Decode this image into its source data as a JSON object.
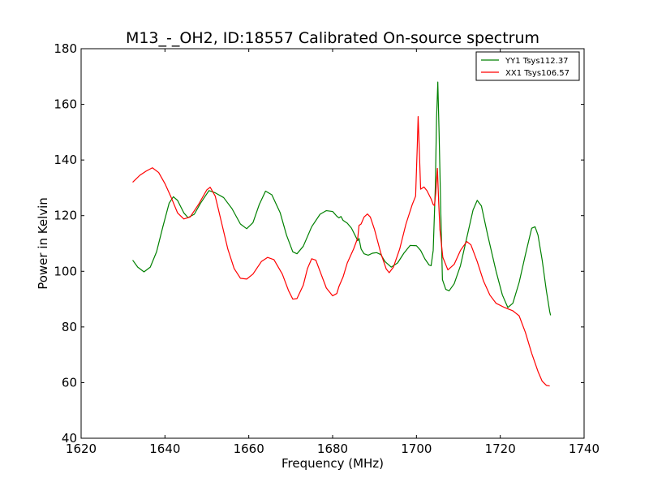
{
  "chart_data": {
    "type": "line",
    "title": "M13_-_OH2, ID:18557 Calibrated On-source spectrum",
    "xlabel": "Frequency (MHz)",
    "ylabel": "Power in Kelvin",
    "xlim": [
      1620,
      1740
    ],
    "ylim": [
      40,
      180
    ],
    "xticks": [
      "1620",
      "1640",
      "1660",
      "1680",
      "1700",
      "1720",
      "1740"
    ],
    "yticks": [
      "40",
      "60",
      "80",
      "100",
      "120",
      "140",
      "160",
      "180"
    ],
    "grid": false,
    "legend_position": "top-right",
    "series": [
      {
        "name": "YY1 Tsys112.37",
        "color": "#008000",
        "points": [
          [
            1632.3,
            104.0
          ],
          [
            1633.5,
            101.5
          ],
          [
            1635,
            99.8
          ],
          [
            1636.5,
            101.5
          ],
          [
            1638,
            107
          ],
          [
            1639.5,
            116
          ],
          [
            1641,
            124.5
          ],
          [
            1642,
            126.8
          ],
          [
            1643,
            125.5
          ],
          [
            1644.5,
            121
          ],
          [
            1645.5,
            119.3
          ],
          [
            1647,
            120.5
          ],
          [
            1648.5,
            124.5
          ],
          [
            1650.5,
            129
          ],
          [
            1652,
            128.2
          ],
          [
            1654,
            126.5
          ],
          [
            1656,
            122.5
          ],
          [
            1658,
            117
          ],
          [
            1659.5,
            115.3
          ],
          [
            1661,
            117.5
          ],
          [
            1662.5,
            124
          ],
          [
            1664,
            128.8
          ],
          [
            1665.5,
            127.5
          ],
          [
            1667.5,
            121
          ],
          [
            1669,
            113
          ],
          [
            1670.5,
            107
          ],
          [
            1671.5,
            106.3
          ],
          [
            1673,
            109
          ],
          [
            1675,
            116
          ],
          [
            1677,
            120.5
          ],
          [
            1678.5,
            121.8
          ],
          [
            1680,
            121.5
          ],
          [
            1681,
            119.8
          ],
          [
            1681.5,
            119.2
          ],
          [
            1682,
            119.7
          ],
          [
            1682.5,
            118.3
          ],
          [
            1683.5,
            117.3
          ],
          [
            1684.5,
            115.5
          ],
          [
            1685.5,
            112.5
          ],
          [
            1686,
            111
          ],
          [
            1686.3,
            111.8
          ],
          [
            1686.8,
            108
          ],
          [
            1687.5,
            106.3
          ],
          [
            1688.5,
            105.8
          ],
          [
            1689.5,
            106.5
          ],
          [
            1690.5,
            106.7
          ],
          [
            1691.5,
            106
          ],
          [
            1692.5,
            103.5
          ],
          [
            1694,
            101.5
          ],
          [
            1695.5,
            103
          ],
          [
            1697,
            106.5
          ],
          [
            1698.5,
            109.3
          ],
          [
            1700,
            109.2
          ],
          [
            1701,
            107.5
          ],
          [
            1702,
            104.5
          ],
          [
            1703,
            102.3
          ],
          [
            1703.5,
            102
          ],
          [
            1704,
            107.5
          ],
          [
            1704.5,
            130
          ],
          [
            1704.8,
            155
          ],
          [
            1705.1,
            168
          ],
          [
            1705.4,
            150
          ],
          [
            1705.8,
            122
          ],
          [
            1706.2,
            97
          ],
          [
            1707,
            93.5
          ],
          [
            1707.8,
            93
          ],
          [
            1709,
            95.5
          ],
          [
            1710.5,
            102
          ],
          [
            1712,
            112
          ],
          [
            1713.5,
            122
          ],
          [
            1714.5,
            125.5
          ],
          [
            1715.5,
            123.5
          ],
          [
            1717,
            113
          ],
          [
            1719,
            100
          ],
          [
            1720.5,
            91.5
          ],
          [
            1721.8,
            87
          ],
          [
            1723,
            88.5
          ],
          [
            1724.5,
            96
          ],
          [
            1726,
            106
          ],
          [
            1727.5,
            115.5
          ],
          [
            1728.3,
            116
          ],
          [
            1729,
            113
          ],
          [
            1730,
            104
          ],
          [
            1731,
            93
          ],
          [
            1731.8,
            85.5
          ],
          [
            1732,
            84.2
          ]
        ]
      },
      {
        "name": "XX1 Tsys106.57",
        "color": "#ff0000",
        "points": [
          [
            1632.3,
            132
          ],
          [
            1634,
            134.5
          ],
          [
            1635.5,
            136
          ],
          [
            1637,
            137.2
          ],
          [
            1638.5,
            135.5
          ],
          [
            1640,
            131.5
          ],
          [
            1641.5,
            126.5
          ],
          [
            1643,
            121
          ],
          [
            1644.5,
            118.8
          ],
          [
            1646,
            119.5
          ],
          [
            1648,
            124
          ],
          [
            1650,
            129.3
          ],
          [
            1650.8,
            130.2
          ],
          [
            1652,
            127
          ],
          [
            1653.5,
            117.5
          ],
          [
            1655,
            108
          ],
          [
            1656.5,
            101
          ],
          [
            1658,
            97.5
          ],
          [
            1659.5,
            97.2
          ],
          [
            1661,
            99
          ],
          [
            1663,
            103.5
          ],
          [
            1664.5,
            105
          ],
          [
            1666,
            104.2
          ],
          [
            1668,
            99
          ],
          [
            1669.5,
            93
          ],
          [
            1670.5,
            90
          ],
          [
            1671.5,
            90.2
          ],
          [
            1673,
            95
          ],
          [
            1674,
            101
          ],
          [
            1675,
            104.5
          ],
          [
            1676,
            104
          ],
          [
            1677,
            100
          ],
          [
            1678.5,
            94
          ],
          [
            1680,
            91.2
          ],
          [
            1681,
            92
          ],
          [
            1681.5,
            94.5
          ],
          [
            1682.5,
            98
          ],
          [
            1683.5,
            103
          ],
          [
            1685,
            108
          ],
          [
            1686,
            112
          ],
          [
            1686.3,
            116.5
          ],
          [
            1686.8,
            117
          ],
          [
            1687.5,
            119.5
          ],
          [
            1688.3,
            120.6
          ],
          [
            1689,
            119.5
          ],
          [
            1690,
            115
          ],
          [
            1691.5,
            106.5
          ],
          [
            1692.8,
            100.8
          ],
          [
            1693.5,
            99.5
          ],
          [
            1694.5,
            101.5
          ],
          [
            1696,
            108
          ],
          [
            1697.5,
            117
          ],
          [
            1699,
            124
          ],
          [
            1699.8,
            127
          ],
          [
            1700.2,
            145
          ],
          [
            1700.4,
            155.6
          ],
          [
            1700.7,
            143
          ],
          [
            1701,
            129.5
          ],
          [
            1701.8,
            130.3
          ],
          [
            1702.5,
            129
          ],
          [
            1703.5,
            126
          ],
          [
            1704,
            124
          ],
          [
            1704.3,
            123.6
          ],
          [
            1704.6,
            128
          ],
          [
            1705,
            137
          ],
          [
            1705.3,
            125
          ],
          [
            1705.6,
            115
          ],
          [
            1706.3,
            105
          ],
          [
            1707.5,
            100.5
          ],
          [
            1709,
            102.5
          ],
          [
            1710.5,
            107.5
          ],
          [
            1712,
            110.7
          ],
          [
            1713,
            109.5
          ],
          [
            1714.5,
            103.5
          ],
          [
            1716,
            96.5
          ],
          [
            1717.5,
            91.5
          ],
          [
            1719,
            88.5
          ],
          [
            1721,
            87
          ],
          [
            1723,
            85.8
          ],
          [
            1724.5,
            84
          ],
          [
            1726,
            78
          ],
          [
            1727.5,
            70.5
          ],
          [
            1729,
            64
          ],
          [
            1730,
            60.5
          ],
          [
            1731,
            59
          ],
          [
            1731.8,
            58.8
          ]
        ]
      }
    ]
  }
}
